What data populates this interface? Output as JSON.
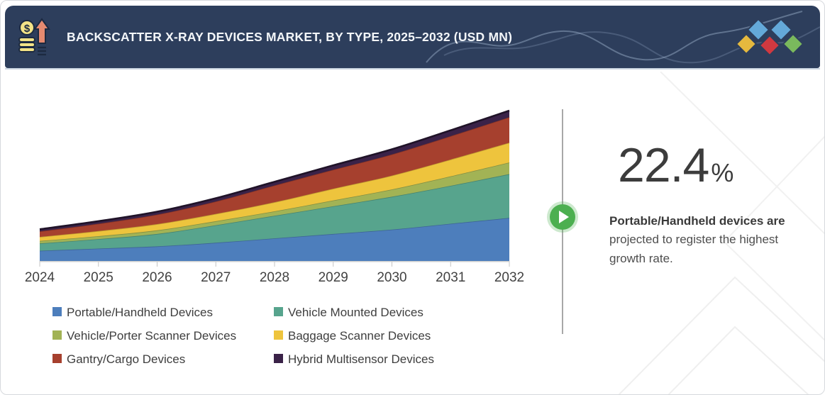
{
  "header": {
    "title": "BACKSCATTER X-RAY DEVICES MARKET, BY TYPE, 2025–2032 (USD MN)",
    "background_color": "#2d3e5c",
    "icon_name": "coins-growth-icon",
    "logo_diamond_colors": [
      "#64a9d9",
      "#64a9d9",
      "#e5b93e",
      "#d03940",
      "#7ab95d"
    ]
  },
  "chart_data": {
    "type": "area",
    "stacked": true,
    "title": "",
    "xlabel": "",
    "ylabel": "",
    "units": "USD MN",
    "x": [
      2024,
      2025,
      2026,
      2027,
      2028,
      2029,
      2030,
      2031,
      2032
    ],
    "series": [
      {
        "name": "Portable/Handheld Devices",
        "color": "#4d7ebc",
        "values": [
          14,
          17,
          20,
          25,
          31,
          37,
          43,
          51,
          59
        ]
      },
      {
        "name": "Vehicle Mounted Devices",
        "color": "#57a48d",
        "values": [
          10,
          13,
          17,
          24,
          31,
          38,
          45,
          52,
          60
        ]
      },
      {
        "name": "Vehicle/Porter Scanner Devices",
        "color": "#a2b355",
        "values": [
          3.5,
          4,
          5,
          5.5,
          6,
          8,
          10,
          13,
          16
        ]
      },
      {
        "name": "Baggage Scanner Devices",
        "color": "#eec43d",
        "values": [
          5.5,
          7,
          8.5,
          10,
          12.5,
          16,
          19,
          23,
          27
        ]
      },
      {
        "name": "Gantry/Cargo Devices",
        "color": "#a6402e",
        "values": [
          7.5,
          10,
          13,
          17,
          23,
          26,
          29,
          32,
          35
        ]
      },
      {
        "name": "Hybrid Multisensor Devices",
        "color": "#3a2248",
        "values": [
          3,
          3.5,
          4,
          4.5,
          5,
          6,
          7,
          8,
          9
        ]
      }
    ],
    "y_axis_labels_visible": false,
    "values_note": "Y axis is unlabeled in the source; series values are relative estimates read from the plot",
    "grid": false,
    "legend_position": "bottom"
  },
  "callout": {
    "value": "22.4",
    "unit": "%",
    "highlight_bold": "Portable/Handheld devices are",
    "highlight_rest": "projected to register the highest growth rate.",
    "play_button_color": "#4caf50"
  }
}
